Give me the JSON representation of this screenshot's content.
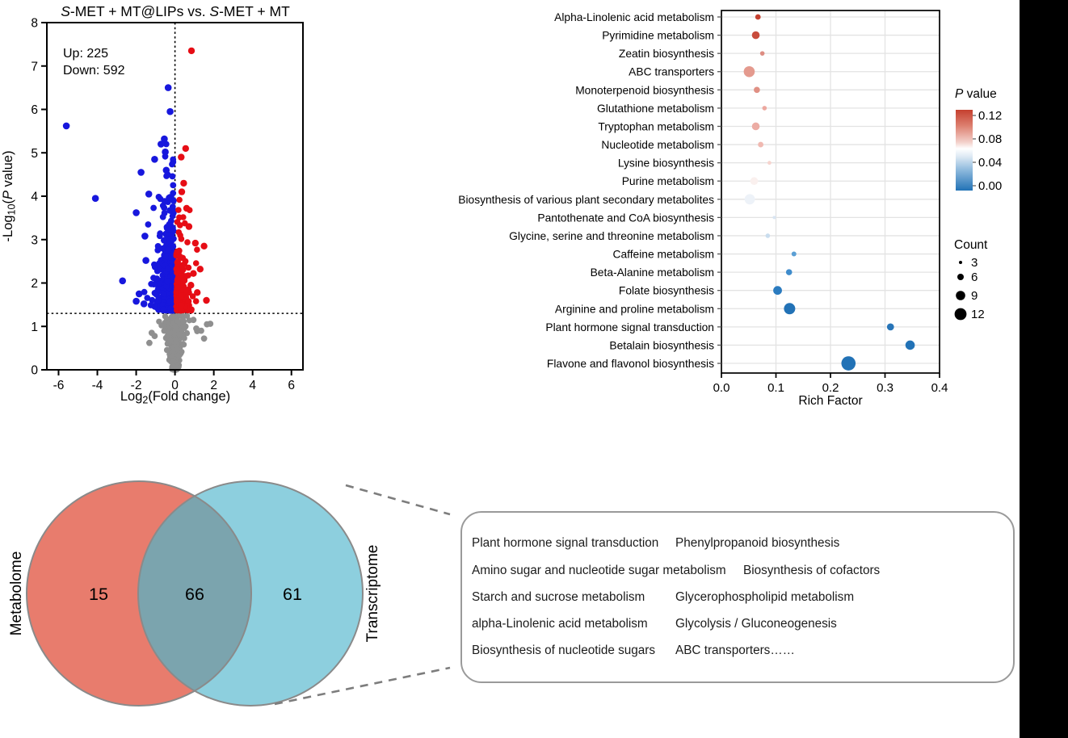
{
  "figure": {
    "background": "#ffffff",
    "black_bar_color": "#000000"
  },
  "chart_data": [
    {
      "type": "scatter",
      "subtype": "volcano",
      "title_parts": {
        "italic1": "S",
        "mid": "-MET + MT@LIPs vs. ",
        "italic2": "S",
        "end": "-MET + MT"
      },
      "up_label": "Up: 225",
      "down_label": "Down: 592",
      "up_count": 225,
      "down_count": 592,
      "ns_count": 360,
      "colors": {
        "up": "#e60d15",
        "down": "#1717dd",
        "ns": "#8f8f8f"
      },
      "xlabel_pre": "Log",
      "xlabel_sub": "2",
      "xlabel_post": "(Fold change)",
      "ylabel_pre": "-Log",
      "ylabel_sub": "10",
      "ylabel_open": "(",
      "ylabel_p": "P",
      "ylabel_post": " value)",
      "xticks": [
        -6,
        -4,
        -2,
        0,
        2,
        4,
        6
      ],
      "yticks": [
        0,
        1,
        2,
        3,
        4,
        5,
        6,
        7,
        8
      ],
      "xlim": [
        -6.6,
        6.6
      ],
      "ylim": [
        0,
        8
      ],
      "threshold": {
        "x": 0,
        "y": 1.3
      },
      "outliers": {
        "down": [
          [
            -5.6,
            5.62
          ],
          [
            -4.1,
            3.95
          ],
          [
            -2.7,
            2.05
          ],
          [
            -0.35,
            6.5
          ],
          [
            -0.25,
            5.95
          ],
          [
            -0.55,
            5.32
          ],
          [
            -0.72,
            5.2
          ],
          [
            -0.5,
            5.02
          ],
          [
            -1.05,
            4.85
          ],
          [
            -1.75,
            4.55
          ],
          [
            -0.45,
            4.6
          ],
          [
            -1.35,
            4.05
          ],
          [
            -2.0,
            3.62
          ],
          [
            -1.55,
            3.08
          ],
          [
            -1.5,
            2.52
          ],
          [
            -1.85,
            1.75
          ],
          [
            -2.0,
            1.58
          ],
          [
            -1.6,
            1.52
          ]
        ],
        "up": [
          [
            0.85,
            7.35
          ],
          [
            0.55,
            5.1
          ],
          [
            0.32,
            4.9
          ],
          [
            0.45,
            4.3
          ],
          [
            0.35,
            4.1
          ],
          [
            0.6,
            3.72
          ],
          [
            1.5,
            2.85
          ],
          [
            1.05,
            2.92
          ],
          [
            0.72,
            3.3
          ],
          [
            1.3,
            2.32
          ],
          [
            0.95,
            2.22
          ],
          [
            1.15,
            1.78
          ],
          [
            1.62,
            1.6
          ],
          [
            0.82,
            1.95
          ]
        ],
        "ns": [
          [
            1.65,
            1.05
          ],
          [
            1.82,
            1.06
          ],
          [
            1.35,
            0.9
          ],
          [
            1.5,
            0.72
          ],
          [
            -1.2,
            0.85
          ],
          [
            -1.05,
            0.78
          ],
          [
            -1.32,
            0.62
          ],
          [
            0.95,
            1.15
          ],
          [
            1.1,
            0.95
          ]
        ]
      },
      "seed": 42
    },
    {
      "type": "bubble",
      "xlabel": "Rich Factor",
      "xticks": [
        "0.0",
        "0.1",
        "0.2",
        "0.3",
        "0.4"
      ],
      "xlim": [
        0,
        0.4
      ],
      "rows": [
        {
          "pathway": "Alpha-Linolenic acid metabolism",
          "rich_factor": 0.067,
          "count": 6,
          "p_value": 0.12,
          "color": "#c5402f",
          "r": 3.4
        },
        {
          "pathway": "Pyrimidine metabolism",
          "rich_factor": 0.063,
          "count": 8,
          "p_value": 0.115,
          "color": "#c84c3c",
          "r": 4.8
        },
        {
          "pathway": "Zeatin biosynthesis",
          "rich_factor": 0.075,
          "count": 4,
          "p_value": 0.105,
          "color": "#dd8d82",
          "r": 2.8
        },
        {
          "pathway": "ABC transporters",
          "rich_factor": 0.051,
          "count": 11,
          "p_value": 0.1,
          "color": "#e49a8e",
          "r": 6.8
        },
        {
          "pathway": "Monoterpenoid biosynthesis",
          "rich_factor": 0.065,
          "count": 6,
          "p_value": 0.1,
          "color": "#e09084",
          "r": 3.8
        },
        {
          "pathway": "Glutathione metabolism",
          "rich_factor": 0.079,
          "count": 4,
          "p_value": 0.095,
          "color": "#eca89f",
          "r": 2.8
        },
        {
          "pathway": "Tryptophan metabolism",
          "rich_factor": 0.063,
          "count": 8,
          "p_value": 0.09,
          "color": "#ecaca4",
          "r": 4.8
        },
        {
          "pathway": "Nucleotide metabolism",
          "rich_factor": 0.072,
          "count": 5,
          "p_value": 0.085,
          "color": "#f0b9b1",
          "r": 3.4
        },
        {
          "pathway": "Lysine biosynthesis",
          "rich_factor": 0.088,
          "count": 4,
          "p_value": 0.08,
          "color": "#f6d4ce",
          "r": 2.4
        },
        {
          "pathway": "Purine metabolism",
          "rich_factor": 0.06,
          "count": 8,
          "p_value": 0.07,
          "color": "#faf0ee",
          "r": 4.8
        },
        {
          "pathway": "Biosynthesis of various plant secondary metabolites",
          "rich_factor": 0.052,
          "count": 10,
          "p_value": 0.06,
          "color": "#edf2f8",
          "r": 6.4
        },
        {
          "pathway": "Pantothenate and CoA biosynthesis",
          "rich_factor": 0.097,
          "count": 3,
          "p_value": 0.05,
          "color": "#d8e5f2",
          "r": 2.0
        },
        {
          "pathway": "Glycine, serine and threonine metabolism",
          "rich_factor": 0.085,
          "count": 4,
          "p_value": 0.045,
          "color": "#c9ddee",
          "r": 2.8
        },
        {
          "pathway": "Caffeine metabolism",
          "rich_factor": 0.133,
          "count": 4,
          "p_value": 0.025,
          "color": "#5b9fd4",
          "r": 3.0
        },
        {
          "pathway": "Beta-Alanine metabolism",
          "rich_factor": 0.124,
          "count": 6,
          "p_value": 0.015,
          "color": "#3f8ccc",
          "r": 3.8
        },
        {
          "pathway": "Folate biosynthesis",
          "rich_factor": 0.103,
          "count": 9,
          "p_value": 0.01,
          "color": "#2b7bbf",
          "r": 5.4
        },
        {
          "pathway": "Arginine and proline metabolism",
          "rich_factor": 0.125,
          "count": 12,
          "p_value": 0.005,
          "color": "#2272b6",
          "r": 7.0
        },
        {
          "pathway": "Plant hormone signal transduction",
          "rich_factor": 0.31,
          "count": 7,
          "p_value": 0.008,
          "color": "#2875b8",
          "r": 4.4
        },
        {
          "pathway": "Betalain biosynthesis",
          "rich_factor": 0.346,
          "count": 9,
          "p_value": 0.005,
          "color": "#2272b6",
          "r": 5.8
        },
        {
          "pathway": "Flavone and flavonol biosynthesis",
          "rich_factor": 0.233,
          "count": 12,
          "p_value": 0.003,
          "color": "#2272b6",
          "r": 8.8
        }
      ],
      "legend_p": {
        "title_italic": "P",
        "title_rest": " value",
        "ticks": [
          "0.12",
          "0.08",
          "0.04",
          "0.00"
        ],
        "gradient_stops": [
          {
            "offset": "0%",
            "color": "#c5402f"
          },
          {
            "offset": "20%",
            "color": "#dd8070"
          },
          {
            "offset": "40%",
            "color": "#f3d0ca"
          },
          {
            "offset": "48%",
            "color": "#ffffff"
          },
          {
            "offset": "58%",
            "color": "#dde9f4"
          },
          {
            "offset": "75%",
            "color": "#8cb8dc"
          },
          {
            "offset": "100%",
            "color": "#2272b6"
          }
        ]
      },
      "legend_count": {
        "title": "Count",
        "items": [
          {
            "label": "3",
            "r": 2.0
          },
          {
            "label": "6",
            "r": 4.0
          },
          {
            "label": "9",
            "r": 5.8
          },
          {
            "label": "12",
            "r": 7.4
          }
        ]
      }
    },
    {
      "type": "venn",
      "left": {
        "label": "Metabolome",
        "count": "15",
        "color": "#e87c6d"
      },
      "right": {
        "label": "Transcriptome",
        "count": "61",
        "color": "#8dcfde"
      },
      "overlap": {
        "count": "66",
        "color": "#7ba4ae"
      },
      "border_color": "#8a8a8a"
    }
  ],
  "pathway_box": {
    "rows": [
      [
        "Plant hormone signal transduction",
        "Phenylpropanoid biosynthesis"
      ],
      [
        "Amino sugar and nucleotide sugar metabolism",
        "Biosynthesis of cofactors"
      ],
      [
        "Starch and sucrose metabolism",
        "Glycerophospholipid metabolism"
      ],
      [
        "alpha-Linolenic acid metabolism",
        "Glycolysis / Gluconeogenesis"
      ],
      [
        "Biosynthesis of nucleotide sugars",
        "ABC transporters……"
      ]
    ]
  }
}
